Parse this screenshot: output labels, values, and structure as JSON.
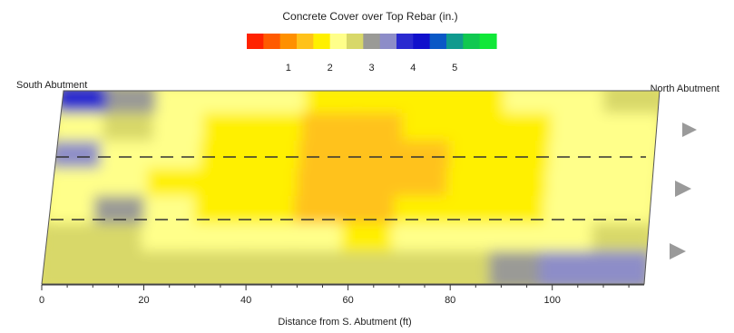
{
  "chart_data": {
    "type": "heatmap",
    "title": "Concrete Cover over Top Rebar (in.)",
    "xlabel": "Distance from S. Abutment (ft)",
    "xlim": [
      0,
      118
    ],
    "xticks": [
      0,
      20,
      40,
      60,
      80,
      100
    ],
    "colorbar": {
      "ticks": [
        1,
        2,
        3,
        4,
        5
      ],
      "range": [
        0,
        6
      ],
      "colors": [
        "#ff2200",
        "#ff5a00",
        "#ff9000",
        "#ffc21a",
        "#fff000",
        "#ffff8a",
        "#d8d869",
        "#9a9a96",
        "#8d8dc8",
        "#2a2ad0",
        "#1010cc",
        "#0a58c6",
        "#109a8e",
        "#10c850",
        "#10e838"
      ]
    },
    "annotations": {
      "south": "South Abutment",
      "north": "North Abutment"
    },
    "values": [
      [
        3.6,
        3.1,
        2.4,
        2.2,
        2.0,
        1.9,
        1.8,
        1.8,
        1.9,
        2.0,
        2.3,
        2.8
      ],
      [
        2.4,
        2.5,
        2.0,
        1.8,
        1.6,
        1.5,
        1.5,
        1.6,
        1.8,
        1.9,
        2.1,
        2.4
      ],
      [
        3.2,
        2.4,
        2.2,
        1.8,
        1.6,
        1.5,
        1.4,
        1.5,
        1.7,
        1.9,
        2.0,
        2.2
      ],
      [
        2.1,
        2.3,
        1.9,
        1.7,
        1.6,
        1.5,
        1.3,
        1.5,
        1.6,
        1.8,
        2.0,
        2.1
      ],
      [
        2.3,
        2.9,
        2.3,
        1.8,
        1.7,
        1.5,
        1.3,
        1.6,
        1.7,
        1.9,
        2.2,
        2.3
      ],
      [
        2.5,
        2.6,
        2.4,
        2.2,
        2.1,
        2.0,
        1.9,
        2.0,
        2.1,
        2.3,
        2.4,
        2.6
      ],
      [
        2.7,
        2.8,
        2.7,
        2.6,
        2.5,
        2.5,
        2.5,
        2.6,
        2.8,
        3.0,
        3.3,
        3.5
      ]
    ]
  }
}
